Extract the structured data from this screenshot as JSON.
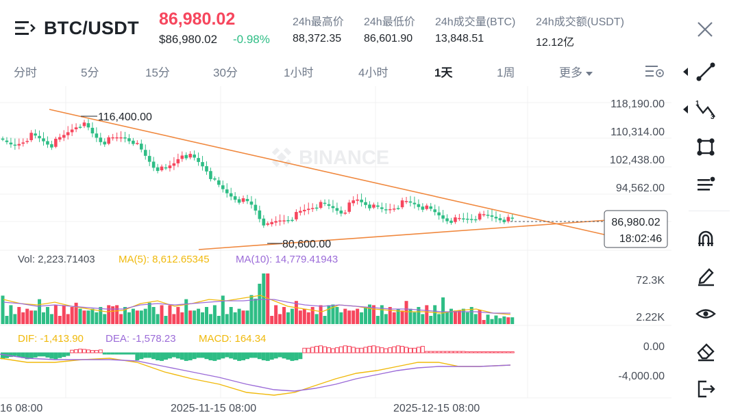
{
  "header": {
    "pair": "BTC/USDT",
    "last_price": "86,980.02",
    "usd_price": "$86,980.02",
    "change_pct": "-0.98%",
    "stats": [
      {
        "label": "24h最高价",
        "value": "88,372.35"
      },
      {
        "label": "24h最低价",
        "value": "86,601.90"
      },
      {
        "label": "24h成交量(BTC)",
        "value": "13,848.51"
      },
      {
        "label": "24h成交额(USDT)",
        "value": "12.12亿"
      }
    ]
  },
  "intervals": {
    "items": [
      "分时",
      "5分",
      "15分",
      "30分",
      "1小时",
      "4小时",
      "1天",
      "1周"
    ],
    "active": "1天",
    "more_label": "更多"
  },
  "chart": {
    "watermark": "BINANCE",
    "price_axis": [
      "118,190.00",
      "110,314.00",
      "102,438.00",
      "94,562.00"
    ],
    "current_price_label": "86,980.02",
    "countdown": "18:02:46",
    "high_annotation": "116,400.00",
    "low_annotation": "80,600.00",
    "volume_legend": {
      "vol": "Vol: 2,223.71403",
      "ma5": "MA(5): 8,612.65345",
      "ma10": "MA(10): 14,779.41943"
    },
    "volume_axis": [
      "72.3K",
      "2.22K"
    ],
    "macd_legend": {
      "dif": "DIF: -1,413.90",
      "dea": "DEA: -1,578.23",
      "macd": "MACD: 164.34"
    },
    "macd_axis": [
      "0.00",
      "-4,000.00"
    ],
    "time_axis": [
      "16 08:00",
      "2025-11-15 08:00",
      "2025-12-15 08:00"
    ],
    "colors": {
      "up": "#f6465d",
      "down": "#2ebd85",
      "ma5": "#f0b90b",
      "ma10": "#9b6bd8",
      "trendline": "#f0883e"
    }
  },
  "toolbar": {
    "icons": [
      "trend-line-icon",
      "fibonacci-icon",
      "shape-icon",
      "text-tools-icon",
      "magnet-icon",
      "pencil-icon",
      "eye-icon",
      "eraser-icon",
      "exit-icon"
    ]
  }
}
